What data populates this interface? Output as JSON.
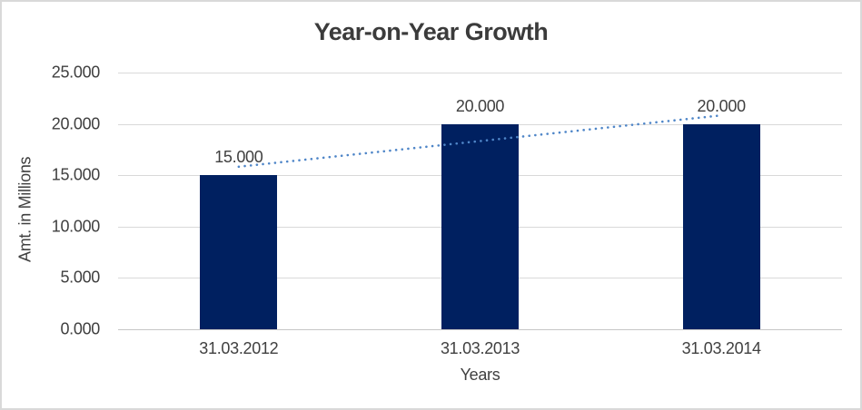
{
  "chart_data": {
    "type": "bar",
    "title": "Year-on-Year Growth",
    "x_axis_title": "Years",
    "y_axis_title": "Amt. in Millions",
    "categories": [
      "31.03.2012",
      "31.03.2013",
      "31.03.2014"
    ],
    "values": [
      15,
      20,
      20
    ],
    "bar_labels": [
      "15.000",
      "20.000",
      "20.000"
    ],
    "y_tick_values": [
      0,
      5,
      10,
      15,
      20,
      25
    ],
    "y_tick_labels": [
      "0.000",
      "5.000",
      "10.000",
      "15.000",
      "20.000",
      "25.000"
    ],
    "ylim": [
      0,
      25
    ],
    "grid": true,
    "legend": "none",
    "trendline": {
      "type": "linear",
      "style": "dotted",
      "values": [
        15.83,
        20.83
      ]
    }
  },
  "colors": {
    "bar_fill": "#002060",
    "trendline": "#4f86c8",
    "gridline": "#d9d9d9",
    "axis_line": "#c6c6c6",
    "label_text": "#404040",
    "title_text": "#3b3b3b",
    "frame_border": "#d9d9d9"
  }
}
